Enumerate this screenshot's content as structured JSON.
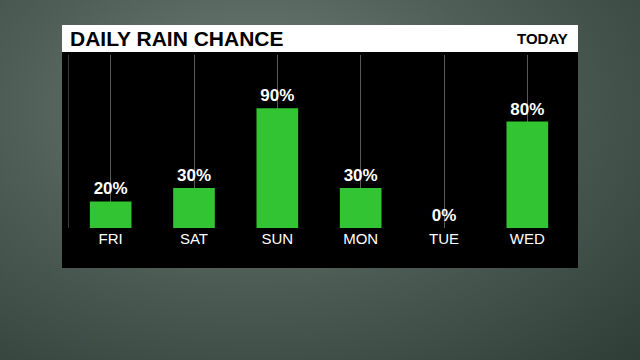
{
  "chart_data": {
    "type": "bar",
    "title": "DAILY RAIN CHANCE",
    "subtitle": "TODAY",
    "categories": [
      "FRI",
      "SAT",
      "SUN",
      "MON",
      "TUE",
      "WED"
    ],
    "values": [
      20,
      30,
      90,
      30,
      0,
      80
    ],
    "value_labels": [
      "20%",
      "30%",
      "90%",
      "30%",
      "0%",
      "80%"
    ],
    "color": "#33c433",
    "ylim": [
      0,
      130
    ],
    "grid": true,
    "data_labels": true,
    "tick_labels": "x"
  }
}
